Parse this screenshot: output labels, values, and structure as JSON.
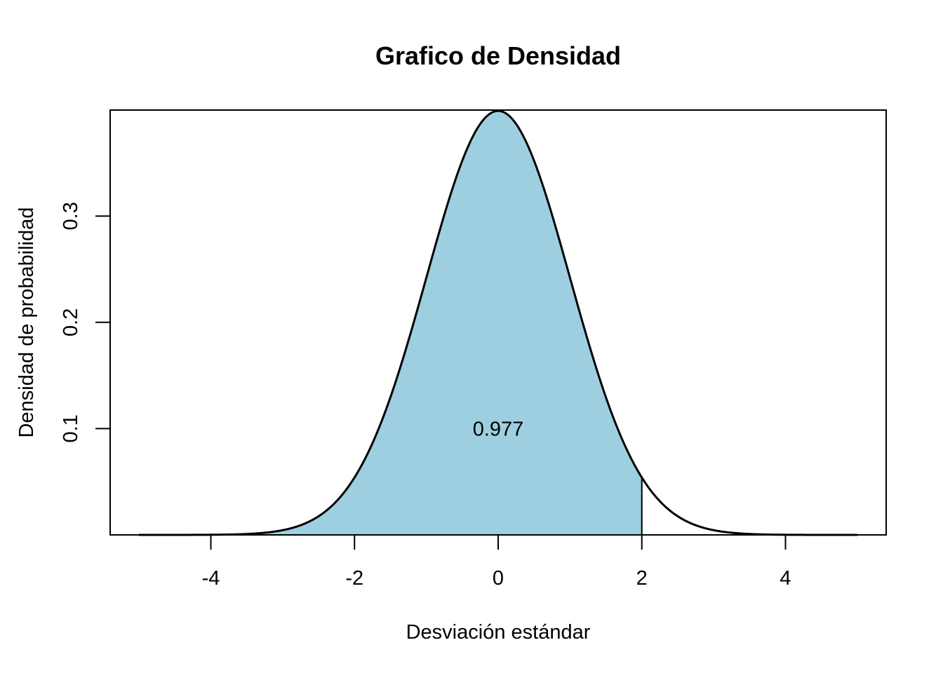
{
  "chart_data": {
    "type": "area",
    "title": "Grafico de Densidad",
    "xlabel": "Desviación estándar",
    "ylabel": "Densidad de probabilidad",
    "xlim": [
      -5,
      5
    ],
    "ylim": [
      0,
      0.3989
    ],
    "x_ticks": [
      -4,
      -2,
      0,
      2,
      4
    ],
    "x_tick_labels": [
      "-4",
      "-2",
      "0",
      "2",
      "4"
    ],
    "y_ticks": [
      0.1,
      0.2,
      0.3
    ],
    "y_tick_labels": [
      "0.1",
      "0.2",
      "0.3"
    ],
    "series": [
      {
        "curve": "standard normal density",
        "x": [
          -5,
          -4.5,
          -4,
          -3.5,
          -3,
          -2.5,
          -2,
          -1.5,
          -1,
          -0.5,
          0,
          0.5,
          1,
          1.5,
          2,
          2.5,
          3,
          3.5,
          4,
          4.5,
          5
        ],
        "y": [
          1.5e-06,
          1.6e-05,
          0.000134,
          0.000873,
          0.00443,
          0.0175,
          0.054,
          0.1295,
          0.242,
          0.3521,
          0.3989,
          0.3521,
          0.242,
          0.1295,
          0.054,
          0.0175,
          0.00443,
          0.000873,
          0.000134,
          1.6e-05,
          1.5e-06
        ]
      }
    ],
    "shaded_region": {
      "from": -5,
      "to": 2,
      "color": "#9ecfe0"
    },
    "annotation": {
      "text": "0.977",
      "x": 0,
      "y": 0.1
    },
    "grid": false,
    "colors": {
      "fill": "#9ecfe0",
      "line": "#000000"
    }
  }
}
